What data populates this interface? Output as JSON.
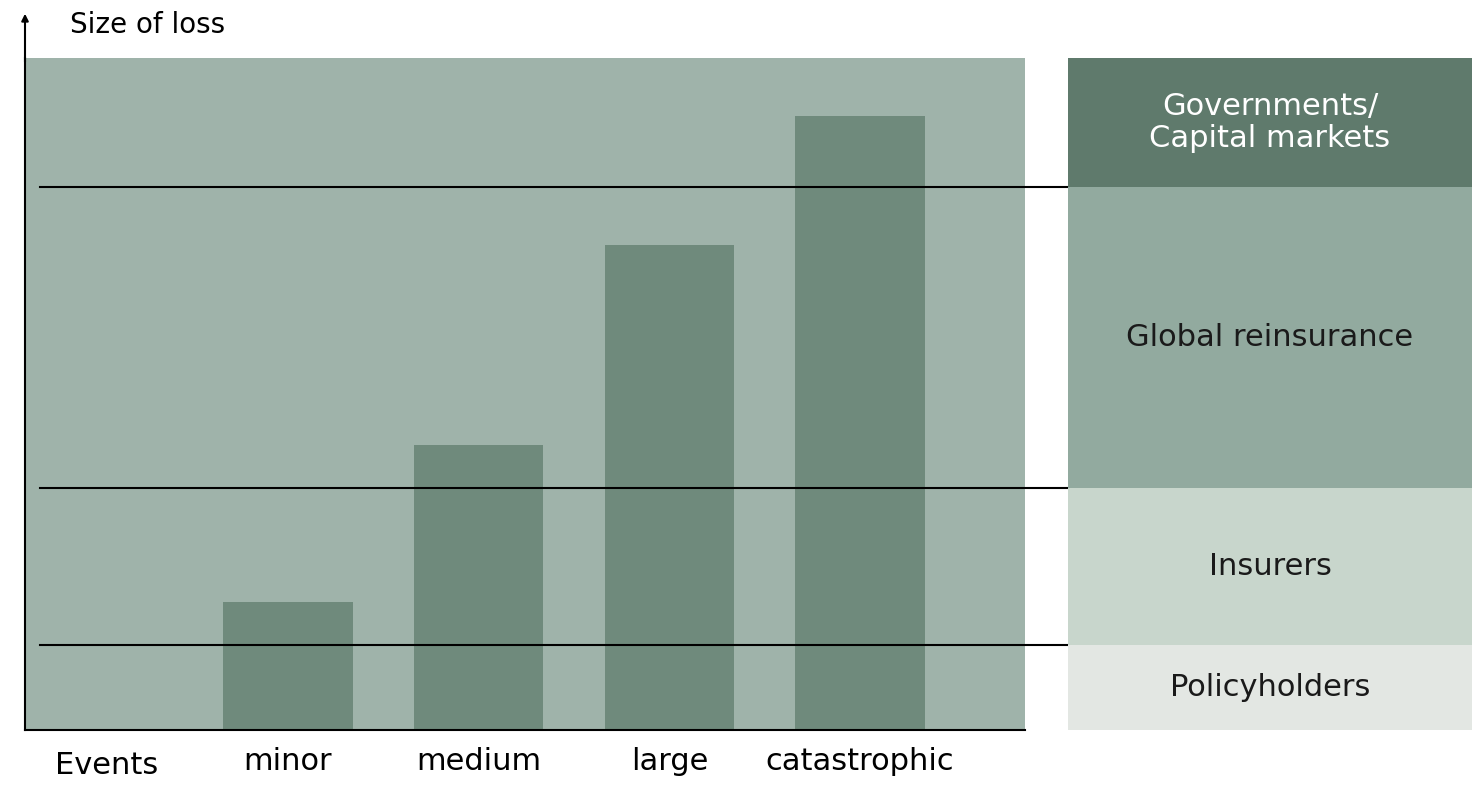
{
  "chart_data": {
    "type": "bar",
    "y_label": "Size of loss",
    "x_label": "Events",
    "categories": [
      "minor",
      "medium",
      "large",
      "catastrophic"
    ],
    "values": [
      19,
      42.4,
      72.2,
      91.4
    ],
    "color": "#6f8a7c",
    "ylim": [
      0,
      100
    ],
    "tick_labels": "x",
    "bands": [
      {
        "name": "Policyholders",
        "from": 0,
        "to": 12.6,
        "color": "#e3e7e3"
      },
      {
        "name": "Insurers",
        "from": 12.6,
        "to": 36,
        "color": "#c8d6cc"
      },
      {
        "name": "Global reinsurance",
        "from": 36,
        "to": 80.8,
        "color": "#92aa9f"
      },
      {
        "name": "Governments/\nCapital markets",
        "from": 80.8,
        "to": 100,
        "color": "#5f7a6c"
      }
    ]
  }
}
